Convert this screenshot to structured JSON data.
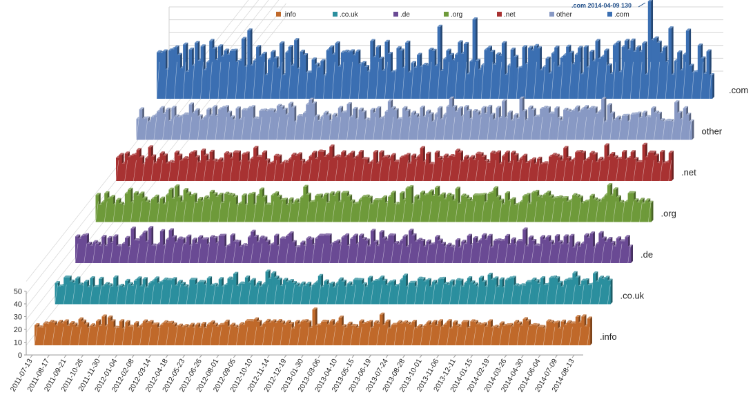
{
  "chart_data": {
    "type": "bar",
    "subtype": "3d-column-series",
    "x": [
      "2011-07-13",
      "2011-08-17",
      "2011-09-21",
      "2011-10-26",
      "2011-11-30",
      "2012-01-04",
      "2012-02-08",
      "2012-03-14",
      "2012-04-18",
      "2012-05-23",
      "2012-06-26",
      "2012-08-01",
      "2012-09-05",
      "2012-10-10",
      "2012-11-14",
      "2012-12-19",
      "2013-01-30",
      "2013-03-06",
      "2013-04-10",
      "2013-05-15",
      "2013-06-19",
      "2013-07-24",
      "2013-08-28",
      "2013-10-01",
      "2013-11-06",
      "2013-12-11",
      "2014-01-15",
      "2014-02-19",
      "2014-03-26",
      "2014-04-30",
      "2014-06-04",
      "2014-07-09",
      "2014-08-13"
    ],
    "y_ticks": [
      0,
      10,
      20,
      30,
      40,
      50
    ],
    "ylim": [
      0,
      50
    ],
    "legend_position": "top",
    "series": [
      {
        "name": ".info",
        "color": "#c0692a",
        "base": 16,
        "var": 3,
        "spikes": [
          {
            "x": "2013-01-30",
            "value": 28
          },
          {
            "x": "2013-06-19",
            "value": 24
          }
        ]
      },
      {
        "name": ".co.uk",
        "color": "#2b8f9e",
        "base": 17,
        "var": 4,
        "spikes": []
      },
      {
        "name": ".de",
        "color": "#6a4a94",
        "base": 17,
        "var": 5,
        "spikes": []
      },
      {
        "name": ".org",
        "color": "#6e9a3a",
        "base": 18,
        "var": 5,
        "spikes": []
      },
      {
        "name": ".net",
        "color": "#a83232",
        "base": 18,
        "var": 5,
        "spikes": []
      },
      {
        "name": "other",
        "color": "#8899c4",
        "base": 20,
        "var": 6,
        "spikes": []
      },
      {
        "name": ".com",
        "color": "#3b6fb2",
        "base": 32,
        "var": 14,
        "spikes": [
          {
            "x": "2014-04-09",
            "value": 130
          }
        ]
      }
    ],
    "legend": [
      ".info",
      ".co.uk",
      ".de",
      ".org",
      ".net",
      "other",
      ".com"
    ],
    "annotation": ".com 2014-04-09 130"
  }
}
